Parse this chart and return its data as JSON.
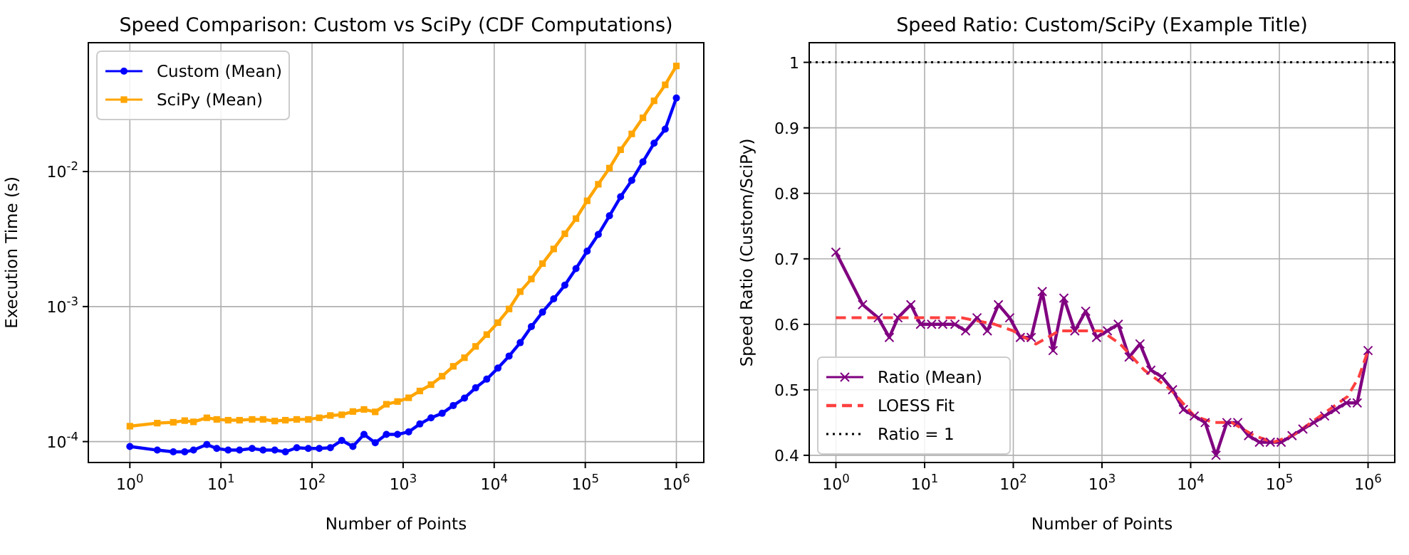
{
  "chart_data": [
    {
      "type": "line",
      "title": "Speed Comparison: Custom vs SciPy (CDF Computations)",
      "xlabel": "Number of Points",
      "ylabel": "Execution Time (s)",
      "log": "xy",
      "grid": true,
      "legend": "top left",
      "xlim": [
        0.35,
        2000000
      ],
      "ylim": [
        7e-05,
        0.09
      ],
      "xticks": [
        {
          "value": 1,
          "label": "10$^{0}$"
        },
        {
          "value": 10,
          "label": "10$^{1}$"
        },
        {
          "value": 100,
          "label": "10$^{2}$"
        },
        {
          "value": 1000,
          "label": "10$^{3}$"
        },
        {
          "value": 10000,
          "label": "10$^{4}$"
        },
        {
          "value": 100000,
          "label": "10$^{5}$"
        },
        {
          "value": 1000000,
          "label": "10$^{6}$"
        }
      ],
      "yticks": [
        {
          "value": 0.0001,
          "label": "10$^{-4}$"
        },
        {
          "value": 0.001,
          "label": "10$^{-3}$"
        },
        {
          "value": 0.01,
          "label": "10$^{-2}$"
        }
      ],
      "x": [
        1,
        2,
        3,
        4,
        5,
        7,
        9,
        12,
        16,
        22,
        29,
        39,
        51,
        68,
        91,
        120,
        159,
        212,
        281,
        372,
        494,
        655,
        868,
        1151,
        1526,
        2024,
        2683,
        3556,
        4715,
        6251,
        8286,
        10985,
        14563,
        19306,
        25595,
        33932,
        44984,
        59636,
        79060,
        104811,
        138949,
        184206,
        244205,
        323745,
        429193,
        568986,
        754312,
        1000000
      ],
      "series": [
        {
          "name": "Custom (Mean)",
          "color": "#0000ff",
          "marker": "circle",
          "values": [
            9.2e-05,
            8.65e-05,
            8.4e-05,
            8.4e-05,
            8.65e-05,
            9.5e-05,
            8.9e-05,
            8.65e-05,
            8.65e-05,
            8.9e-05,
            8.65e-05,
            8.65e-05,
            8.4e-05,
            9e-05,
            8.9e-05,
            8.9e-05,
            9e-05,
            0.000102,
            9.2e-05,
            0.000113,
            9.8e-05,
            0.000113,
            0.000113,
            0.000118,
            0.000135,
            0.00015,
            0.000162,
            0.000185,
            0.00021,
            0.00025,
            0.00029,
            0.00035,
            0.00043,
            0.00054,
            0.00071,
            0.00091,
            0.00114,
            0.00144,
            0.00191,
            0.00257,
            0.00342,
            0.0047,
            0.0065,
            0.0086,
            0.0118,
            0.0162,
            0.0206,
            0.035
          ]
        },
        {
          "name": "SciPy (Mean)",
          "color": "#ffa500",
          "marker": "square",
          "values": [
            0.00013,
            0.000137,
            0.000139,
            0.000143,
            0.00014,
            0.00015,
            0.000146,
            0.000144,
            0.000144,
            0.000146,
            0.000146,
            0.000142,
            0.000144,
            0.000146,
            0.000146,
            0.00015,
            0.000156,
            0.000158,
            0.000167,
            0.000173,
            0.000166,
            0.000189,
            0.000198,
            0.000211,
            0.000237,
            0.000264,
            0.000305,
            0.000361,
            0.000418,
            0.000507,
            0.00062,
            0.00076,
            0.00096,
            0.00129,
            0.0016,
            0.00208,
            0.00267,
            0.00346,
            0.00448,
            0.00607,
            0.00805,
            0.0106,
            0.0145,
            0.019,
            0.025,
            0.0334,
            0.0439,
            0.0605
          ]
        }
      ]
    },
    {
      "type": "line",
      "title": "Speed Ratio: Custom/SciPy (Example Title)",
      "xlabel": "Number of Points",
      "ylabel": "Speed Ratio (Custom/SciPy)",
      "log": "x",
      "grid": true,
      "legend": "bottom left",
      "xlim": [
        0.5,
        2000000
      ],
      "ylim": [
        0.389,
        1.03
      ],
      "xticks": [
        {
          "value": 1,
          "label": "10$^{0}$"
        },
        {
          "value": 10,
          "label": "10$^{1}$"
        },
        {
          "value": 100,
          "label": "10$^{2}$"
        },
        {
          "value": 1000,
          "label": "10$^{3}$"
        },
        {
          "value": 10000,
          "label": "10$^{4}$"
        },
        {
          "value": 100000,
          "label": "10$^{5}$"
        },
        {
          "value": 1000000,
          "label": "10$^{6}$"
        }
      ],
      "yticks": [
        0.4,
        0.5,
        0.6,
        0.7,
        0.8,
        0.9,
        1.0
      ],
      "x": [
        1,
        2,
        3,
        4,
        5,
        7,
        9,
        12,
        16,
        22,
        29,
        39,
        51,
        68,
        91,
        120,
        159,
        212,
        281,
        372,
        494,
        655,
        868,
        1151,
        1526,
        2024,
        2683,
        3556,
        4715,
        6251,
        8286,
        10985,
        14563,
        19306,
        25595,
        33932,
        44984,
        59636,
        79060,
        104811,
        138949,
        184206,
        244205,
        323745,
        429193,
        568986,
        754312,
        1000000
      ],
      "series": [
        {
          "name": "Ratio (Mean)",
          "color": "#800080",
          "marker": "cross",
          "values": [
            0.71,
            0.63,
            0.61,
            0.58,
            0.61,
            0.63,
            0.6,
            0.6,
            0.6,
            0.6,
            0.59,
            0.61,
            0.59,
            0.63,
            0.61,
            0.58,
            0.58,
            0.65,
            0.56,
            0.64,
            0.59,
            0.62,
            0.58,
            0.59,
            0.6,
            0.55,
            0.57,
            0.53,
            0.52,
            0.5,
            0.47,
            0.46,
            0.45,
            0.4,
            0.45,
            0.45,
            0.43,
            0.42,
            0.42,
            0.42,
            0.43,
            0.44,
            0.45,
            0.46,
            0.47,
            0.48,
            0.48,
            0.56
          ]
        },
        {
          "name": "LOESS Fit",
          "color": "#ff4040",
          "marker": "none",
          "line_style": "dashed",
          "x": [
            1,
            3,
            10,
            26,
            62,
            100,
            180,
            330,
            690,
            980,
            1600,
            3000,
            6000,
            11000,
            18000,
            29000,
            52000,
            85000,
            140000,
            290000,
            590000,
            790000,
            1000000
          ],
          "values": [
            0.61,
            0.61,
            0.61,
            0.61,
            0.6,
            0.59,
            0.57,
            0.59,
            0.59,
            0.59,
            0.57,
            0.53,
            0.5,
            0.46,
            0.45,
            0.45,
            0.43,
            0.42,
            0.43,
            0.46,
            0.49,
            0.52,
            0.56
          ]
        }
      ],
      "ref_lines": [
        {
          "axis": "y",
          "value": 1,
          "label": "Ratio = 1",
          "color": "#000000",
          "line_style": "dotted"
        }
      ]
    }
  ]
}
